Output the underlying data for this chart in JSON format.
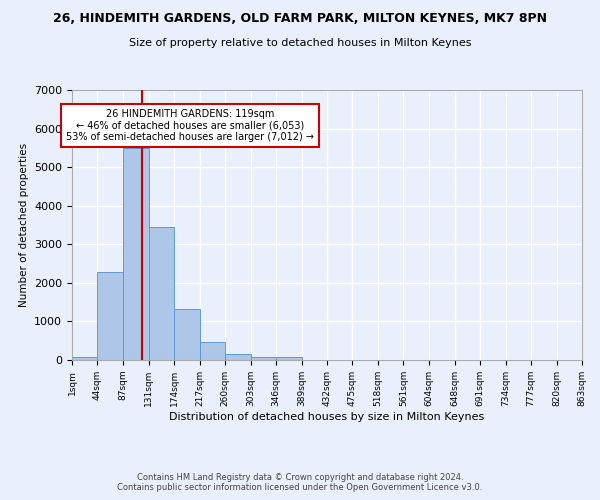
{
  "title": "26, HINDEMITH GARDENS, OLD FARM PARK, MILTON KEYNES, MK7 8PN",
  "subtitle": "Size of property relative to detached houses in Milton Keynes",
  "xlabel": "Distribution of detached houses by size in Milton Keynes",
  "ylabel": "Number of detached properties",
  "bar_color": "#aec6e8",
  "bar_edge_color": "#5b9bd5",
  "background_color": "#eaf0fb",
  "grid_color": "#ffffff",
  "bin_edges": [
    1,
    44,
    87,
    131,
    174,
    217,
    260,
    303,
    346,
    389,
    432,
    475,
    518,
    561,
    604,
    648,
    691,
    734,
    777,
    820,
    863
  ],
  "bin_labels": [
    "1sqm",
    "44sqm",
    "87sqm",
    "131sqm",
    "174sqm",
    "217sqm",
    "260sqm",
    "303sqm",
    "346sqm",
    "389sqm",
    "432sqm",
    "475sqm",
    "518sqm",
    "561sqm",
    "604sqm",
    "648sqm",
    "691sqm",
    "734sqm",
    "777sqm",
    "820sqm",
    "863sqm"
  ],
  "bar_heights": [
    75,
    2270,
    5500,
    3450,
    1310,
    460,
    160,
    90,
    70,
    0,
    0,
    0,
    0,
    0,
    0,
    0,
    0,
    0,
    0,
    0
  ],
  "property_size": 119,
  "property_line_color": "#cc0000",
  "annotation_text": "26 HINDEMITH GARDENS: 119sqm\n← 46% of detached houses are smaller (6,053)\n53% of semi-detached houses are larger (7,012) →",
  "annotation_box_color": "#ffffff",
  "annotation_box_edge": "#cc0000",
  "ylim": [
    0,
    7000
  ],
  "yticks": [
    0,
    1000,
    2000,
    3000,
    4000,
    5000,
    6000,
    7000
  ],
  "footer_line1": "Contains HM Land Registry data © Crown copyright and database right 2024.",
  "footer_line2": "Contains public sector information licensed under the Open Government Licence v3.0."
}
